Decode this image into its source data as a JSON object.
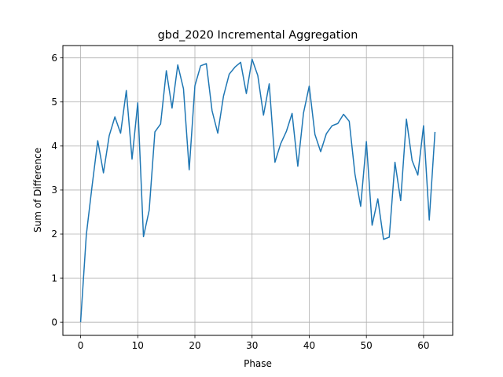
{
  "chart_data": {
    "type": "line",
    "title": "gbd_2020 Incremental Aggregation",
    "xlabel": "Phase",
    "ylabel": "Sum of Difference",
    "xlim": [
      -3.1,
      65.1
    ],
    "ylim": [
      -0.3,
      6.28
    ],
    "xticks": [
      0,
      10,
      20,
      30,
      40,
      50,
      60
    ],
    "yticks": [
      0,
      1,
      2,
      3,
      4,
      5,
      6
    ],
    "grid": true,
    "color": "#1f77b4",
    "series": [
      {
        "x": [
          0,
          1,
          2,
          3,
          4,
          5,
          6,
          7,
          8,
          9,
          10,
          11,
          12,
          13,
          14,
          15,
          16,
          17,
          18,
          19,
          20,
          21,
          22,
          23,
          24,
          25,
          26,
          27,
          28,
          29,
          30,
          31,
          32,
          33,
          34,
          35,
          36,
          37,
          38,
          39,
          40,
          41,
          42,
          43,
          44,
          45,
          46,
          47,
          48,
          49,
          50,
          51,
          52,
          53,
          54,
          55,
          56,
          57,
          58,
          59,
          60,
          61,
          62
        ],
        "values": [
          0.0,
          1.98,
          3.08,
          4.12,
          3.39,
          4.23,
          4.66,
          4.29,
          5.26,
          3.7,
          4.98,
          1.94,
          2.54,
          4.32,
          4.5,
          5.71,
          4.86,
          5.84,
          5.3,
          3.46,
          5.37,
          5.82,
          5.87,
          4.8,
          4.29,
          5.13,
          5.63,
          5.79,
          5.9,
          5.19,
          5.97,
          5.6,
          4.7,
          5.41,
          3.63,
          4.05,
          4.33,
          4.74,
          3.54,
          4.75,
          5.36,
          4.26,
          3.87,
          4.28,
          4.46,
          4.51,
          4.72,
          4.56,
          3.36,
          2.63,
          4.1,
          2.2,
          2.8,
          1.88,
          1.93,
          3.63,
          2.76,
          4.61,
          3.67,
          3.34,
          4.46,
          2.32,
          4.32
        ]
      }
    ]
  }
}
